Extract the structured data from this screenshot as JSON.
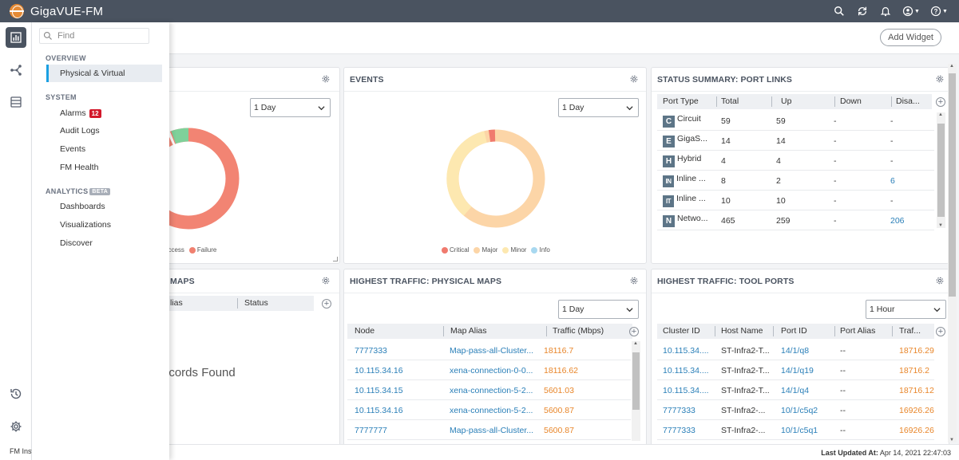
{
  "app": {
    "title": "GigaVUE-FM"
  },
  "colors": {
    "header": "#4a5360",
    "accent": "#1ba0e2",
    "failure": "#f08070",
    "success": "#7fd19a",
    "critical": "#f07a6e",
    "major": "#fcd5a7",
    "minor": "#fde8b0",
    "info": "#a8d8f0",
    "orange": "#e8862a",
    "link": "#2a7fb8"
  },
  "top_icons": [
    "search-icon",
    "refresh-icon",
    "bell-icon",
    "user-icon",
    "help-icon"
  ],
  "rail": {
    "footer": "FM Inst"
  },
  "nav": {
    "find_placeholder": "Find",
    "overview": "OVERVIEW",
    "physical_virtual": "Physical & Virtual",
    "system": "SYSTEM",
    "alarms": "Alarms",
    "alarms_count": "12",
    "audit_logs": "Audit Logs",
    "events": "Events",
    "fm_health": "FM Health",
    "analytics": "ANALYTICS",
    "beta": "BETA",
    "dashboards": "Dashboards",
    "visualizations": "Visualizations",
    "discover": "Discover"
  },
  "toolbar": {
    "add_widget": "Add Widget"
  },
  "card1": {
    "select": "1 Day",
    "legend_success": "uccess",
    "legend_failure": "Failure"
  },
  "card2": {
    "title": "EVENTS",
    "select": "1 Day",
    "legend": [
      "Critical",
      "Major",
      "Minor",
      "Info"
    ]
  },
  "card3": {
    "title": "STATUS SUMMARY: PORT LINKS",
    "columns": [
      "Port Type",
      "Total",
      "Up",
      "Down",
      "Disa..."
    ],
    "rows": [
      {
        "icon": "C",
        "type": "Circuit",
        "total": "59",
        "up": "59",
        "down": "-",
        "disabled": "-"
      },
      {
        "icon": "E",
        "type": "GigaS...",
        "total": "14",
        "up": "14",
        "down": "-",
        "disabled": "-"
      },
      {
        "icon": "H",
        "type": "Hybrid",
        "total": "4",
        "up": "4",
        "down": "-",
        "disabled": "-"
      },
      {
        "icon": "IN",
        "type": "Inline ...",
        "total": "8",
        "up": "2",
        "down": "-",
        "disabled": "6"
      },
      {
        "icon": "IT",
        "type": "Inline ...",
        "total": "10",
        "up": "10",
        "down": "-",
        "disabled": "-"
      },
      {
        "icon": "N",
        "type": "Netwo...",
        "total": "465",
        "up": "259",
        "down": "-",
        "disabled": "206"
      }
    ]
  },
  "card4": {
    "title": "MAPS",
    "col_alias": "lias",
    "col_status": "Status",
    "empty": "ecords Found"
  },
  "card5": {
    "title": "HIGHEST TRAFFIC: PHYSICAL MAPS",
    "select": "1 Day",
    "columns": [
      "Node",
      "Map Alias",
      "Traffic (Mbps)"
    ],
    "rows": [
      {
        "node": "7777333",
        "alias": "Map-pass-all-Cluster...",
        "traffic": "18116.7"
      },
      {
        "node": "10.115.34.16",
        "alias": "xena-connection-0-0...",
        "traffic": "18116.62"
      },
      {
        "node": "10.115.34.15",
        "alias": "xena-connection-5-2...",
        "traffic": "5601.03"
      },
      {
        "node": "10.115.34.16",
        "alias": "xena-connection-5-2...",
        "traffic": "5600.87"
      },
      {
        "node": "7777777",
        "alias": "Map-pass-all-Cluster...",
        "traffic": "5600.87"
      }
    ]
  },
  "card6": {
    "title": "HIGHEST TRAFFIC: TOOL PORTS",
    "select": "1 Hour",
    "columns": [
      "Cluster ID",
      "Host Name",
      "Port ID",
      "Port Alias",
      "Traf..."
    ],
    "rows": [
      {
        "cluster": "10.115.34....",
        "host": "ST-Infra2-T...",
        "port": "14/1/q8",
        "alias": "--",
        "traffic": "18716.29"
      },
      {
        "cluster": "10.115.34....",
        "host": "ST-Infra2-T...",
        "port": "14/1/q19",
        "alias": "--",
        "traffic": "18716.2"
      },
      {
        "cluster": "10.115.34....",
        "host": "ST-Infra2-T...",
        "port": "14/1/q4",
        "alias": "--",
        "traffic": "18716.12"
      },
      {
        "cluster": "7777333",
        "host": "ST-Infra2-...",
        "port": "10/1/c5q2",
        "alias": "--",
        "traffic": "16926.26"
      },
      {
        "cluster": "7777333",
        "host": "ST-Infra2-...",
        "port": "10/1/c5q1",
        "alias": "--",
        "traffic": "16926.26"
      }
    ]
  },
  "footer": {
    "label": "Last Updated At:",
    "value": "Apr 14, 2021 22:47:03"
  }
}
